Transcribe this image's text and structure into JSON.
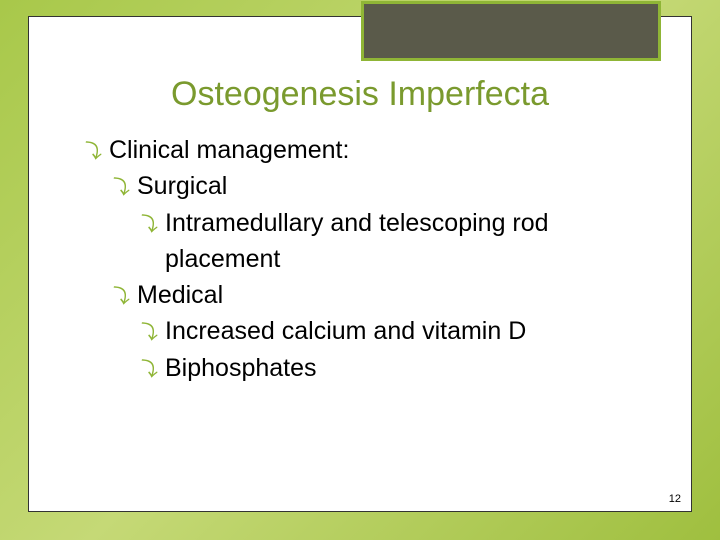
{
  "slide": {
    "title": "Osteogenesis Imperfecta",
    "bullets": {
      "b1": "Clinical management:",
      "b2": "Surgical",
      "b3": "Intramedullary and telescoping rod placement",
      "b4": "Medical",
      "b5": "Increased calcium and vitamin D",
      "b6": "Biphosphates"
    },
    "pageNumber": "12"
  },
  "style": {
    "title_color": "#7a9a2e",
    "title_fontsize": 34,
    "body_fontsize": 25,
    "bullet_color": "#8fb536",
    "accent_box_bg": "#5a5a4a",
    "accent_box_border": "#8fb536",
    "slide_bg": "#ffffff",
    "page_bg_gradient": [
      "#a8c84a",
      "#c5d976",
      "#9fbf3f"
    ]
  }
}
